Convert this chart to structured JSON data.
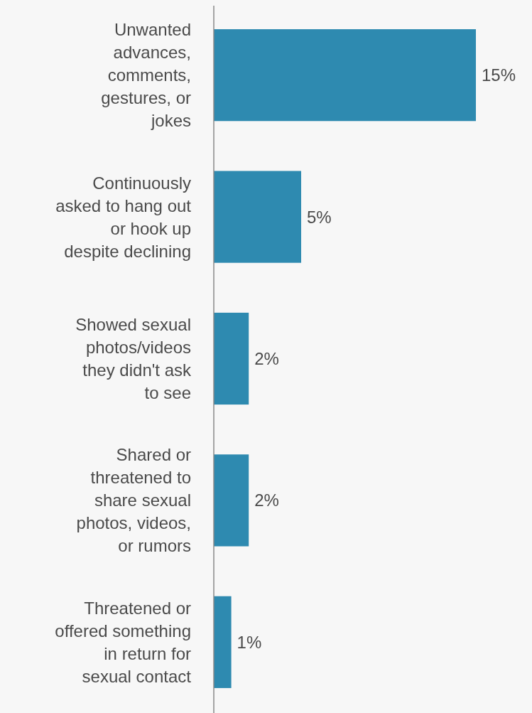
{
  "chart_data": {
    "type": "bar",
    "orientation": "horizontal",
    "categories": [
      "Unwanted advances, comments, gestures, or jokes",
      "Continuously asked to hang out or hook up despite declining",
      "Showed sexual photos/videos they didn't ask to see",
      "Shared or threatened to share sexual photos, videos, or rumors",
      "Threatened or offered something in return for sexual contact"
    ],
    "values": [
      15,
      5,
      2,
      2,
      1
    ],
    "value_labels": [
      "15%",
      "5%",
      "2%",
      "2%",
      "1%"
    ],
    "color": "#2e8ab0"
  }
}
